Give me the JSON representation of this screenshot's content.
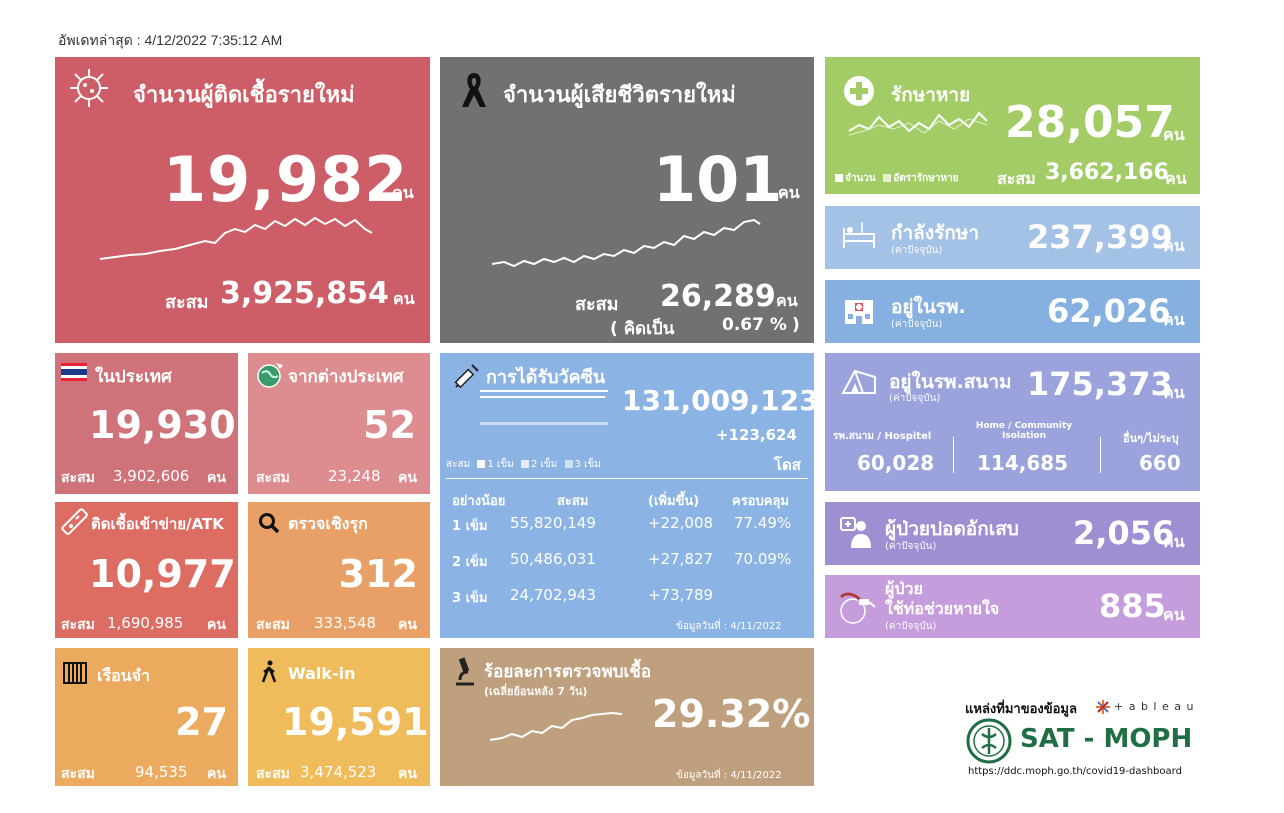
{
  "updated": "อัพเดทล่าสุด : 4/12/2022 7:35:12 AM",
  "cases": {
    "title": "จำนวนผู้ติดเชื้อรายใหม่",
    "value": "19,982",
    "unit": "คน",
    "cum_label": "สะสม",
    "cum": "3,925,854",
    "cum_unit": "คน",
    "color": "#cd5d66"
  },
  "deaths": {
    "title": "จำนวนผู้เสียชีวิตรายใหม่",
    "value": "101",
    "unit": "คน",
    "cum_label": "สะสม",
    "cum": "26,289",
    "cum_unit": "คน",
    "pct_open": "( คิดเป็น",
    "pct": "0.67 %",
    "pct_close": ")",
    "color": "#717171"
  },
  "recovered": {
    "title": "รักษาหาย",
    "value": "28,057",
    "unit": "คน",
    "legend_a": "จำนวน",
    "legend_b": "อัตรารักษาหาย",
    "cum_label": "สะสม",
    "cum": "3,662,166",
    "cum_unit": "คน",
    "color": "#a3cc66"
  },
  "treating": {
    "title": "กำลังรักษา",
    "sub": "(ค่าปัจจุบัน)",
    "value": "237,399",
    "unit": "คน",
    "color": "#a4c2e6"
  },
  "hospital": {
    "title": "อยู่ในรพ.",
    "sub": "(ค่าปัจจุบัน)",
    "value": "62,026",
    "unit": "คน",
    "color": "#86b0df"
  },
  "domestic": {
    "title": "ในประเทศ",
    "value": "19,930",
    "cum_label": "สะสม",
    "cum": "3,902,606",
    "unit": "คน",
    "color": "#d07279"
  },
  "abroad": {
    "title": "จากต่างประเทศ",
    "value": "52",
    "cum_label": "สะสม",
    "cum": "23,248",
    "unit": "คน",
    "color": "#dd8c8f"
  },
  "vaccine": {
    "title": "การได้รับวัคซีน",
    "total": "131,009,123",
    "increase": "+123,624",
    "unit": "โดส",
    "legend_label": "สะสม",
    "legend_1": "1 เข็ม",
    "legend_2": "2 เข็ม",
    "legend_3": "3 เข็ม",
    "headers": [
      "อย่างน้อย",
      "สะสม",
      "(เพิ่มขึ้น)",
      "ครอบคลุม"
    ],
    "rows": [
      {
        "dose": "1 เข็ม",
        "cum": "55,820,149",
        "inc": "+22,008",
        "cov": "77.49%"
      },
      {
        "dose": "2 เข็ม",
        "cum": "50,486,031",
        "inc": "+27,827",
        "cov": "70.09%"
      },
      {
        "dose": "3 เข็ม",
        "cum": "24,702,943",
        "inc": "+73,789",
        "cov": ""
      }
    ],
    "date": "ข้อมูลวันที่ : 4/11/2022",
    "color": "#8bb3e3"
  },
  "field_hospital": {
    "title": "อยู่ในรพ.สนาม",
    "sub": "(ค่าปัจจุบัน)",
    "value": "175,373",
    "unit": "คน",
    "col1_label": "รพ.สนาม / Hospitel",
    "col1": "60,028",
    "col2_label": "Home / Community Isolation",
    "col2": "114,685",
    "col3_label": "อื่นๆ/ไม่ระบุ",
    "col3": "660",
    "color": "#9aa3dc"
  },
  "atk": {
    "title": "ติดเชื้อเข้าข่าย/ATK",
    "value": "10,977",
    "cum_label": "สะสม",
    "cum": "1,690,985",
    "unit": "คน",
    "color": "#dd6d62"
  },
  "proactive": {
    "title": "ตรวจเชิงรุก",
    "value": "312",
    "cum_label": "สะสม",
    "cum": "333,548",
    "unit": "คน",
    "color": "#e9a066"
  },
  "pneumonia": {
    "title": "ผู้ป่วยปอดอักเสบ",
    "sub": "(ค่าปัจจุบัน)",
    "value": "2,056",
    "unit": "คน",
    "color": "#a08ed2"
  },
  "ventilator": {
    "title1": "ผู้ป่วย",
    "title2": "ใช้ท่อช่วยหายใจ",
    "sub": "(ค่าปัจจุบัน)",
    "value": "885",
    "unit": "คน",
    "color": "#c69ddc"
  },
  "prison": {
    "title": "เรือนจำ",
    "value": "27",
    "cum_label": "สะสม",
    "cum": "94,535",
    "unit": "คน",
    "color": "#ecaa5e"
  },
  "walkin": {
    "title": "Walk-in",
    "value": "19,591",
    "cum_label": "สะสม",
    "cum": "3,474,523",
    "unit": "คน",
    "color": "#f0bb5a"
  },
  "positivity": {
    "title": "ร้อยละการตรวจพบเชื้อ",
    "sub": "(เฉลี่ยย้อนหลัง 7 วัน)",
    "value": "29.32%",
    "date": "ข้อมูลวันที่ : 4/11/2022",
    "color": "#bfa07e"
  },
  "source": {
    "label": "แหล่งที่มาของข้อมูล",
    "tableau": "+ a b l e a u",
    "org": "SAT - MOPH",
    "url": "https://ddc.moph.go.th/covid19-dashboard"
  }
}
